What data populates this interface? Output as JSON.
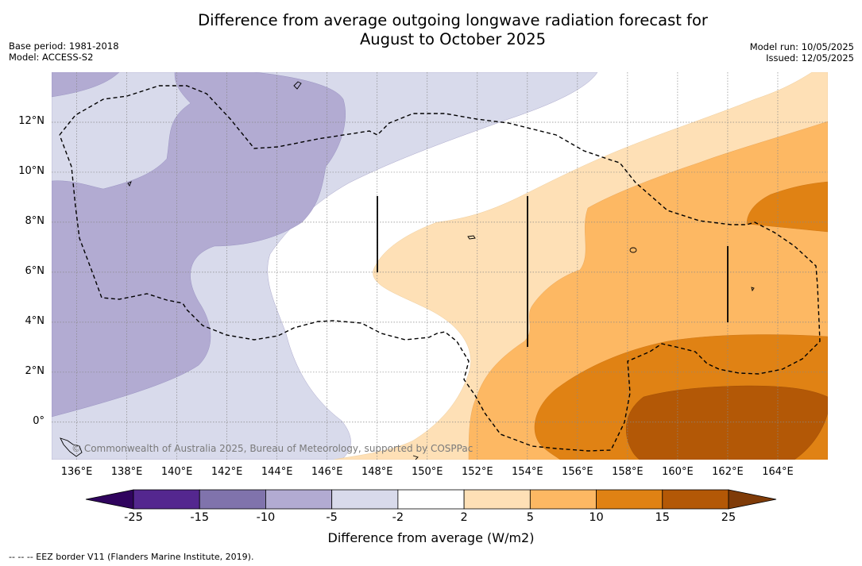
{
  "title_line1": "Difference from average outgoing longwave radiation forecast for",
  "title_line2": "August to October 2025",
  "base_period": "Base period: 1981-2018",
  "model": "Model: ACCESS-S2",
  "model_run": "Model run: 10/05/2025",
  "issued": "Issued: 12/05/2025",
  "credit": "© Commonwealth of Australia 2025, Bureau of Meteorology, supported by COSPPac",
  "footnote": "--  --  -- EEZ border V11 (Flanders Marine Institute, 2019).",
  "x_ticks": [
    "136°E",
    "138°E",
    "140°E",
    "142°E",
    "144°E",
    "146°E",
    "148°E",
    "150°E",
    "152°E",
    "154°E",
    "156°E",
    "158°E",
    "160°E",
    "162°E",
    "164°E"
  ],
  "y_ticks": [
    "12°N",
    "10°N",
    "8°N",
    "6°N",
    "4°N",
    "2°N",
    "0°"
  ],
  "colorbar": {
    "title": "Difference from average (W/m2)",
    "labels": [
      "-25",
      "-15",
      "-10",
      "-5",
      "-2",
      "2",
      "5",
      "10",
      "15",
      "25"
    ],
    "colors": [
      "#30045e",
      "#54278f",
      "#8073ac",
      "#b2abd2",
      "#d8daeb",
      "#ffffff",
      "#fee0b6",
      "#fdb863",
      "#e08214",
      "#b35806",
      "#7f3b08"
    ]
  },
  "extent": {
    "lon_min": 135,
    "lon_max": 166,
    "lat_min": -1.5,
    "lat_max": 14
  }
}
